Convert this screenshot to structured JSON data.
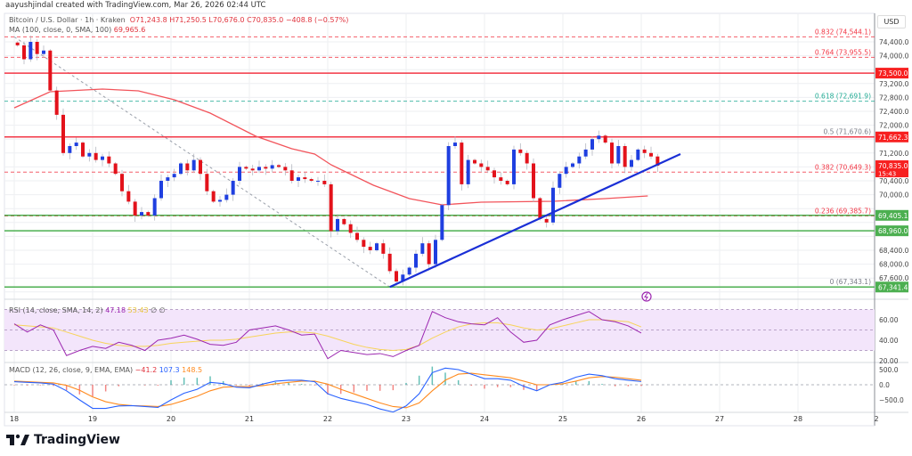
{
  "header": {
    "credit": "aayushjindal created with TradingView.com, Mar 26, 2026 02:44 UTC"
  },
  "legend": {
    "symbol": "Bitcoin / U.S. Dollar · 1h · Kraken",
    "open": "O71,243.8",
    "high": "H71,250.5",
    "low": "L70,676.0",
    "close": "C70,835.0",
    "change": "−408.8 (−0.57%)",
    "ma_label": "MA (100, close, 0, SMA, 100)",
    "ma_value": "69,965.6",
    "rsi_label": "RSI (14, close, SMA, 14, 2)",
    "rsi_value": "47.18",
    "rsi_ma_value": "53.43",
    "rsi_icons": "∅ ∅",
    "macd_label": "MACD (12, 26, close, 9, EMA, EMA)",
    "macd_hist": "−41.2",
    "macd_value": "107.3",
    "macd_signal": "148.5"
  },
  "price_axis": {
    "currency": "USD"
  },
  "logo": {
    "text": "TradingView"
  },
  "colors": {
    "up": "#1f3fe0",
    "down": "#e3121b",
    "ma": "#f2545b",
    "trendline": "#1a2fd6",
    "resistance": "#f23645",
    "support": "#4caf50",
    "fib_red": "#f23645",
    "fib_teal": "#22ab94",
    "rsi": "#9c27b0",
    "rsi_ma": "#f7d45a",
    "macd": "#2962ff",
    "signal": "#ff8a1e"
  },
  "chart_data": {
    "type": "candlestick",
    "symbol": "BTC/USD",
    "interval": "1h",
    "exchange": "Kraken",
    "x_tick_labels": [
      "18",
      "19",
      "20",
      "21",
      "22",
      "23",
      "24",
      "25",
      "26",
      "27",
      "28",
      "2"
    ],
    "price_ticks": [
      74400,
      74000,
      73600,
      73200,
      72800,
      72400,
      72000,
      71600,
      71200,
      70800,
      70400,
      70000,
      69600,
      69200,
      68800,
      68400,
      68000,
      67600,
      67200
    ],
    "ylim": [
      67150,
      74800
    ],
    "closes_start": {
      "day": 18,
      "hour": 0
    },
    "closes_step_hours": 2,
    "closes": [
      74300,
      73900,
      74400,
      74050,
      74150,
      73000,
      72300,
      71200,
      71400,
      71500,
      71100,
      71200,
      71000,
      71100,
      70900,
      70600,
      70100,
      69800,
      69400,
      69500,
      69400,
      69900,
      70400,
      70500,
      70600,
      70900,
      70700,
      71000,
      70600,
      70100,
      69800,
      69850,
      70000,
      70400,
      70800,
      70750,
      70700,
      70800,
      70750,
      70850,
      70800,
      70700,
      70400,
      70500,
      70450,
      70400,
      70400,
      70300,
      68950,
      69300,
      69150,
      68900,
      68700,
      68500,
      68400,
      68600,
      68300,
      67800,
      67500,
      67700,
      67900,
      68300,
      68600,
      68000,
      68700,
      69700,
      71400,
      71500,
      70300,
      71000,
      70900,
      70800,
      70700,
      70500,
      70400,
      70300,
      71300,
      71200,
      70900,
      69900,
      69300,
      69200,
      70200,
      70600,
      70800,
      70900,
      71100,
      71300,
      71600,
      71700,
      71500,
      70900,
      71400,
      70800,
      71000,
      71300,
      71200,
      71100,
      70835
    ],
    "ma100": [
      [
        18,
        0,
        72500
      ],
      [
        18,
        11,
        72964
      ],
      [
        19,
        3,
        73041
      ],
      [
        19,
        14,
        72990
      ],
      [
        20,
        1,
        72733
      ],
      [
        20,
        12,
        72349
      ],
      [
        21,
        2,
        71682
      ],
      [
        21,
        13,
        71323
      ],
      [
        21,
        20,
        71169
      ],
      [
        22,
        1,
        70862
      ],
      [
        22,
        14,
        70272
      ],
      [
        23,
        1,
        69887
      ],
      [
        23,
        11,
        69708
      ],
      [
        23,
        23,
        69785
      ],
      [
        24,
        21,
        69810
      ],
      [
        25,
        13,
        69887
      ],
      [
        26,
        2,
        69965
      ]
    ],
    "horizontal_levels": [
      {
        "price": 73500,
        "label": "73,500.0",
        "kind": "resistance"
      },
      {
        "price": 71662.3,
        "label": "71,662.3",
        "kind": "resistance"
      },
      {
        "price": 69405.1,
        "label": "69,405.1",
        "kind": "support"
      },
      {
        "price": 68960,
        "label": "68,960.0",
        "kind": "support"
      },
      {
        "price": 67341.4,
        "label": "67,341.4",
        "kind": "support"
      }
    ],
    "last_price": {
      "price": 70835,
      "label": "70,835.0",
      "countdown": "15:43"
    },
    "fib_levels": [
      {
        "price": 74544.1,
        "label": "0.832 (74,544.1)",
        "color": "red"
      },
      {
        "price": 73955.5,
        "label": "0.764 (73,955.5)",
        "color": "red"
      },
      {
        "price": 72691.9,
        "label": "0.618 (72,691.9)",
        "color": "teal"
      },
      {
        "price": 71670.6,
        "label": "0.5 (71,670.6)",
        "color": "gray"
      },
      {
        "price": 70649.3,
        "label": "0.382 (70,649.3)",
        "color": "red"
      },
      {
        "price": 69385.7,
        "label": "0.236 (69,385.7)",
        "color": "red"
      },
      {
        "price": 67343.1,
        "label": "0 (67,343.1)",
        "color": "gray"
      }
    ],
    "fib_diagonal": [
      [
        18,
        0,
        74544
      ],
      [
        22,
        19,
        67343
      ]
    ],
    "trendline": [
      [
        22,
        19,
        67343
      ],
      [
        26,
        12,
        71169
      ]
    ],
    "rsi": {
      "ticks": [
        60,
        40,
        20
      ],
      "tick_labels": [
        "60.00",
        "40.00",
        "20.00"
      ],
      "band": [
        30,
        70
      ],
      "step_hours": 4,
      "values": [
        56,
        48,
        55,
        50,
        25,
        30,
        34,
        32,
        38,
        35,
        30,
        40,
        42,
        45,
        41,
        36,
        35,
        38,
        50,
        52,
        54,
        50,
        45,
        46,
        22,
        30,
        28,
        26,
        27,
        24,
        30,
        35,
        68,
        62,
        58,
        56,
        55,
        62,
        48,
        38,
        40,
        55,
        60,
        64,
        68,
        60,
        58,
        54,
        47
      ],
      "ma": [
        55,
        54,
        53,
        52,
        48,
        44,
        40,
        37,
        35,
        34,
        34,
        35,
        37,
        38,
        39,
        40,
        40,
        41,
        43,
        45,
        47,
        48,
        48,
        47,
        44,
        40,
        36,
        33,
        31,
        30,
        31,
        35,
        42,
        48,
        53,
        56,
        57,
        57,
        55,
        52,
        50,
        51,
        54,
        57,
        60,
        60,
        59,
        58,
        53
      ]
    },
    "macd": {
      "ticks": [
        500,
        0,
        -500
      ],
      "tick_labels": [
        "500.0",
        "0.0",
        "−500.0"
      ],
      "step_hours": 4,
      "macd": [
        100,
        80,
        60,
        20,
        -200,
        -500,
        -780,
        -780,
        -700,
        -690,
        -720,
        -750,
        -500,
        -280,
        -150,
        80,
        40,
        -80,
        -100,
        20,
        120,
        150,
        150,
        100,
        -300,
        -450,
        -550,
        -650,
        -800,
        -900,
        -700,
        -300,
        400,
        550,
        500,
        350,
        200,
        200,
        150,
        -50,
        -200,
        0,
        80,
        250,
        350,
        300,
        200,
        150,
        107
      ],
      "signal": [
        120,
        100,
        80,
        60,
        -20,
        -180,
        -400,
        -560,
        -650,
        -690,
        -700,
        -720,
        -650,
        -520,
        -380,
        -200,
        -80,
        -60,
        -60,
        -30,
        30,
        80,
        120,
        120,
        20,
        -150,
        -300,
        -450,
        -600,
        -720,
        -760,
        -600,
        -200,
        150,
        350,
        380,
        330,
        280,
        230,
        120,
        0,
        0,
        30,
        120,
        230,
        270,
        250,
        200,
        148
      ]
    }
  }
}
